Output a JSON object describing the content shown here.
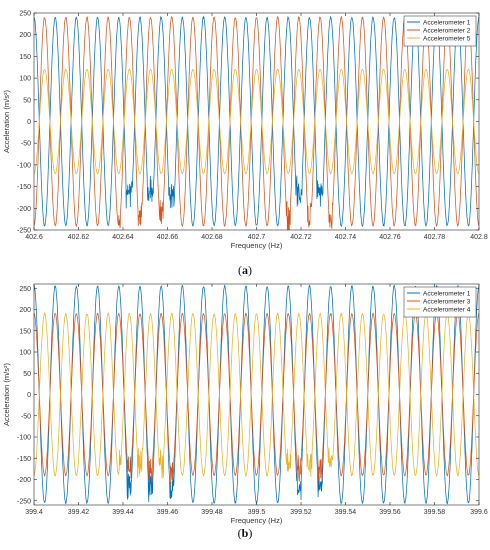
{
  "chart_data": [
    {
      "type": "line",
      "caption_open": "(",
      "caption_letter": "a",
      "caption_close": ")",
      "xlabel": "Frequency (Hz)",
      "ylabel": "Acceleration (m/s²)",
      "xlim": [
        402.6,
        402.8
      ],
      "ylim": [
        -250,
        250
      ],
      "xticks": [
        402.6,
        402.62,
        402.64,
        402.66,
        402.68,
        402.7,
        402.72,
        402.74,
        402.76,
        402.78,
        402.8
      ],
      "xtick_labels": [
        "402.6",
        "402.62",
        "402.64",
        "402.66",
        "402.68",
        "402.7",
        "402.72",
        "402.74",
        "402.76",
        "402.78",
        "402.8"
      ],
      "yticks": [
        -250,
        -200,
        -150,
        -100,
        -50,
        0,
        50,
        100,
        150,
        200,
        250
      ],
      "ytick_labels": [
        "-250",
        "-200",
        "-150",
        "-100",
        "-50",
        "0",
        "50",
        "100",
        "150",
        "200",
        "250"
      ],
      "grid": false,
      "legend_position": "top-right",
      "cycles_in_window": 21,
      "series": [
        {
          "name": "Accelerometer 1",
          "color": "#0072BD",
          "amplitude": 240,
          "phase_deg": 0,
          "noisy_min": -140
        },
        {
          "name": "Accelerometer 2",
          "color": "#D95319",
          "amplitude": 240,
          "phase_deg": 180,
          "noisy_min": -200
        },
        {
          "name": "Accelerometer 5",
          "color": "#EDB120",
          "amplitude": 120,
          "phase_deg": 180,
          "noisy_min": null
        }
      ]
    },
    {
      "type": "line",
      "caption_open": "(",
      "caption_letter": "b",
      "caption_close": ")",
      "xlabel": "Frequency (Hz)",
      "ylabel": "Acceleration (m/s²)",
      "xlim": [
        399.4,
        399.6
      ],
      "ylim": [
        -260,
        260
      ],
      "xticks": [
        399.4,
        399.42,
        399.44,
        399.46,
        399.48,
        399.5,
        399.52,
        399.54,
        399.56,
        399.58,
        399.6
      ],
      "xtick_labels": [
        "399.4",
        "399.42",
        "399.44",
        "399.46",
        "399.48",
        "399.5",
        "399.52",
        "399.54",
        "399.56",
        "399.58",
        "399.6"
      ],
      "yticks": [
        -250,
        -200,
        -150,
        -100,
        -50,
        0,
        50,
        100,
        150,
        200,
        250
      ],
      "ytick_labels": [
        "-250",
        "-200",
        "-150",
        "-100",
        "-50",
        "0",
        "50",
        "100",
        "150",
        "200",
        "250"
      ],
      "grid": false,
      "legend_position": "top-right",
      "cycles_in_window": 21,
      "series": [
        {
          "name": "Accelerometer 1",
          "color": "#0072BD",
          "amplitude": 255,
          "phase_deg": 0,
          "noisy_min": -200
        },
        {
          "name": "Accelerometer 3",
          "color": "#D95319",
          "amplitude": 190,
          "phase_deg": 0,
          "noisy_min": -160
        },
        {
          "name": "Accelerometer 4",
          "color": "#EDB120",
          "amplitude": 190,
          "phase_deg": 180,
          "noisy_min": -140
        }
      ]
    }
  ]
}
